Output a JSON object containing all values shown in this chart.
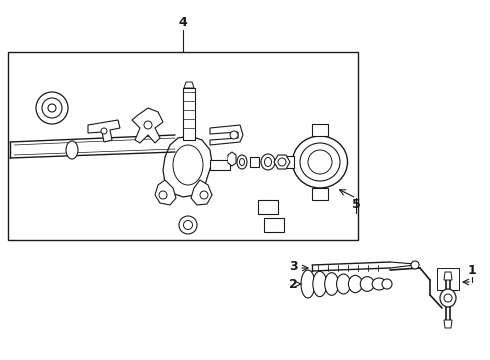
{
  "bg_color": "#ffffff",
  "line_color": "#1a1a1a",
  "fig_width": 4.9,
  "fig_height": 3.6,
  "dpi": 100,
  "label_4": "4",
  "label_1": "1",
  "label_2": "2",
  "label_3": "3",
  "label_5": "5",
  "font_size_labels": 9,
  "font_weight": "bold"
}
